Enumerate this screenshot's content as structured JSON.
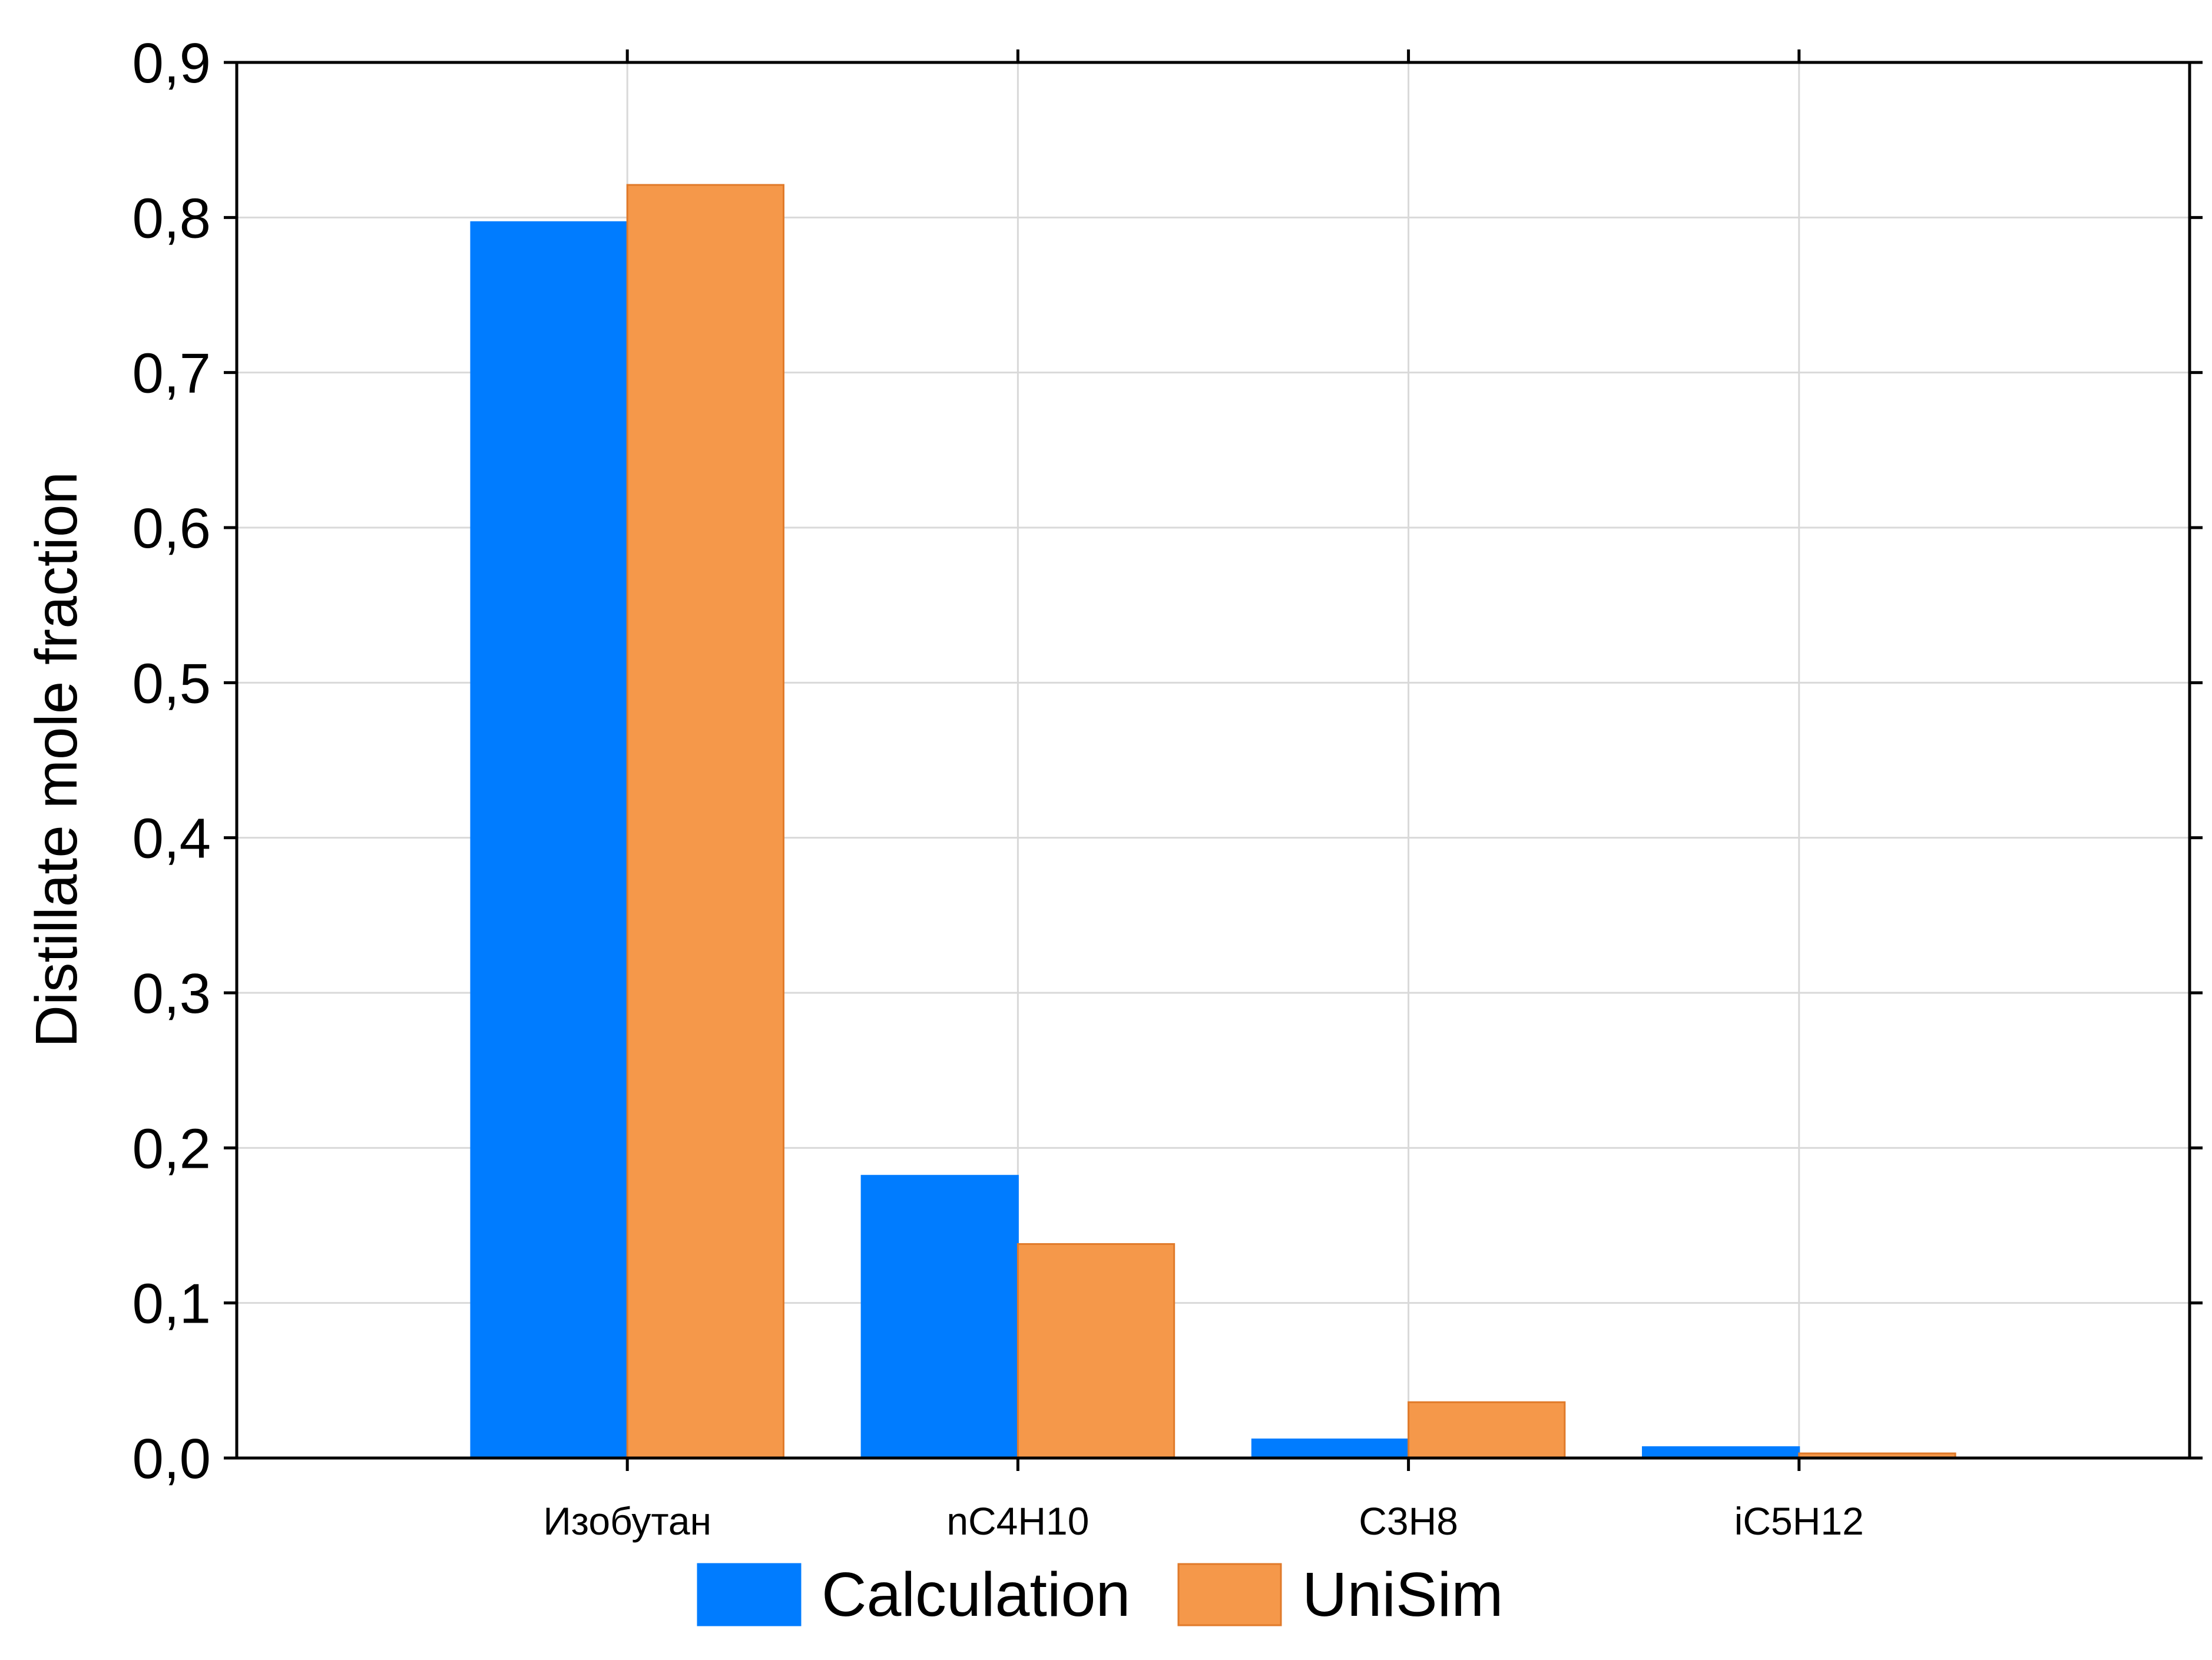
{
  "colors": {
    "calculation": "#007cff",
    "unisim": "#f5984a",
    "unisim_edge": "#e07a2a",
    "grid": "#d9d9d9",
    "axis": "#000000"
  },
  "chart_data": {
    "type": "bar",
    "title": "",
    "xlabel": "",
    "ylabel": "Distillate mole fraction",
    "categories": [
      "Изобутан",
      "nC4H10",
      "C3H8",
      "iC5H12"
    ],
    "series": [
      {
        "name": "Calculation",
        "values": [
          0.797,
          0.182,
          0.012,
          0.007
        ]
      },
      {
        "name": "UniSim",
        "values": [
          0.821,
          0.138,
          0.036,
          0.003
        ]
      }
    ],
    "ylim": [
      0.0,
      0.9
    ],
    "yticks": [
      "0,0",
      "0,1",
      "0,2",
      "0,3",
      "0,4",
      "0,5",
      "0,6",
      "0,7",
      "0,8",
      "0,9"
    ],
    "grid": true,
    "legend": {
      "placement": "bottom-center",
      "entries": [
        "Calculation",
        "UniSim"
      ]
    }
  }
}
